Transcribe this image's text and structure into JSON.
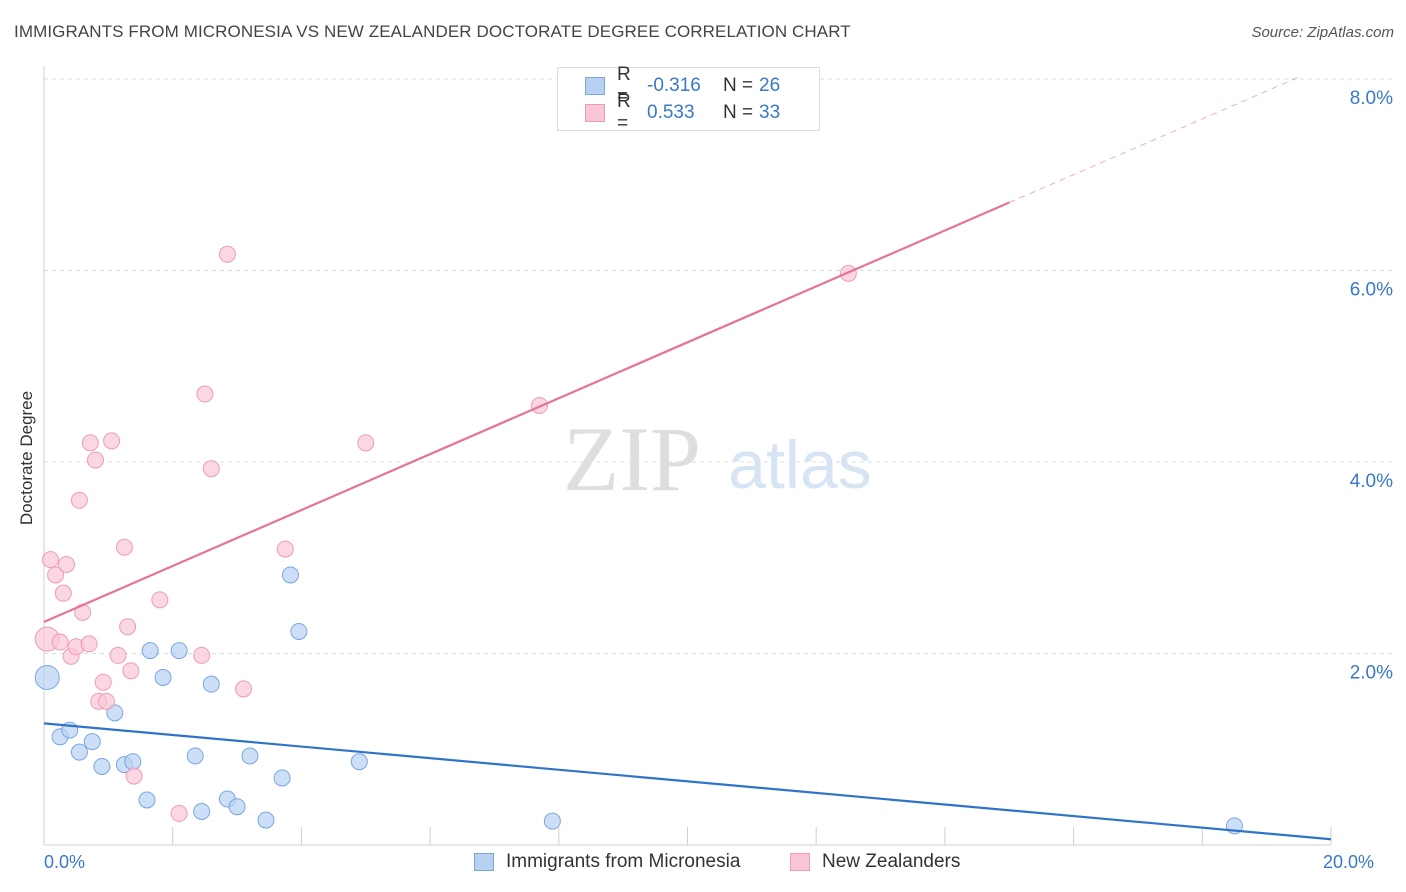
{
  "title": "IMMIGRANTS FROM MICRONESIA VS NEW ZEALANDER DOCTORATE DEGREE CORRELATION CHART",
  "source": "Source: ZipAtlas.com",
  "watermark": {
    "zip": "ZIP",
    "atlas": "atlas"
  },
  "colors": {
    "blue_fill": "#b8d1f2",
    "blue_stroke": "#7aa6df",
    "blue_line": "#2f74c8",
    "pink_fill": "#f9c6d5",
    "pink_stroke": "#ee9cb5",
    "pink_line": "#e57399",
    "tick_label": "#3a78c9"
  },
  "stats": [
    {
      "r_label": "R =",
      "r_value": "-0.316",
      "n_label": "N =",
      "n_value": "26",
      "swatch": "blue"
    },
    {
      "r_label": "R =",
      "r_value": "0.533",
      "n_label": "N =",
      "n_value": "33",
      "swatch": "pink"
    }
  ],
  "legend": [
    {
      "label": "Immigrants from Micronesia",
      "swatch": "blue"
    },
    {
      "label": "New Zealanders",
      "swatch": "pink"
    }
  ],
  "chart_data": {
    "type": "scatter",
    "title": "IMMIGRANTS FROM MICRONESIA VS NEW ZEALANDER DOCTORATE DEGREE CORRELATION CHART",
    "xlabel": "",
    "ylabel": "Doctorate Degree",
    "xlim": [
      0,
      20
    ],
    "ylim": [
      0,
      8
    ],
    "x_tick_labels": [
      "0.0%",
      "20.0%"
    ],
    "y_ticks": [
      2,
      4,
      6,
      8
    ],
    "y_tick_labels": [
      "2.0%",
      "4.0%",
      "6.0%",
      "8.0%"
    ],
    "grid": true,
    "legend_position": "bottom",
    "series": [
      {
        "name": "Immigrants from Micronesia",
        "color": "blue",
        "points": [
          [
            0.05,
            1.75
          ],
          [
            0.25,
            1.13
          ],
          [
            0.4,
            1.2
          ],
          [
            0.55,
            0.97
          ],
          [
            0.75,
            1.08
          ],
          [
            0.9,
            0.82
          ],
          [
            1.1,
            1.38
          ],
          [
            1.25,
            0.84
          ],
          [
            1.38,
            0.87
          ],
          [
            1.6,
            0.47
          ],
          [
            1.65,
            2.03
          ],
          [
            1.85,
            1.75
          ],
          [
            2.1,
            2.03
          ],
          [
            2.35,
            0.93
          ],
          [
            2.45,
            0.35
          ],
          [
            2.6,
            1.68
          ],
          [
            2.85,
            0.48
          ],
          [
            3.0,
            0.4
          ],
          [
            3.2,
            0.93
          ],
          [
            3.45,
            0.26
          ],
          [
            3.7,
            0.7
          ],
          [
            3.83,
            2.82
          ],
          [
            3.96,
            2.23
          ],
          [
            4.9,
            0.87
          ],
          [
            7.9,
            0.25
          ],
          [
            18.5,
            0.2
          ]
        ],
        "trend": {
          "x": [
            0,
            20
          ],
          "y": [
            1.27,
            0.06
          ]
        }
      },
      {
        "name": "New Zealanders",
        "color": "pink",
        "points": [
          [
            0.05,
            2.15
          ],
          [
            0.1,
            2.98
          ],
          [
            0.18,
            2.82
          ],
          [
            0.25,
            2.12
          ],
          [
            0.3,
            2.63
          ],
          [
            0.35,
            2.93
          ],
          [
            0.42,
            1.97
          ],
          [
            0.5,
            2.07
          ],
          [
            0.55,
            3.6
          ],
          [
            0.6,
            2.43
          ],
          [
            0.7,
            2.1
          ],
          [
            0.72,
            4.2
          ],
          [
            0.8,
            4.02
          ],
          [
            0.85,
            1.5
          ],
          [
            0.92,
            1.7
          ],
          [
            0.97,
            1.5
          ],
          [
            1.05,
            4.22
          ],
          [
            1.15,
            1.98
          ],
          [
            1.25,
            3.11
          ],
          [
            1.3,
            2.28
          ],
          [
            1.35,
            1.82
          ],
          [
            1.4,
            0.72
          ],
          [
            1.8,
            2.56
          ],
          [
            2.1,
            0.33
          ],
          [
            2.45,
            1.98
          ],
          [
            2.5,
            4.71
          ],
          [
            2.6,
            3.93
          ],
          [
            2.85,
            6.17
          ],
          [
            3.1,
            1.63
          ],
          [
            3.75,
            3.09
          ],
          [
            5.0,
            4.2
          ],
          [
            7.7,
            4.59
          ],
          [
            12.5,
            5.97
          ]
        ],
        "trend": {
          "x": [
            0,
            15.0
          ],
          "y": [
            2.33,
            6.71
          ]
        },
        "trend_dashed": {
          "x": [
            15.0,
            19.5
          ],
          "y": [
            6.71,
            8.02
          ]
        }
      }
    ]
  }
}
